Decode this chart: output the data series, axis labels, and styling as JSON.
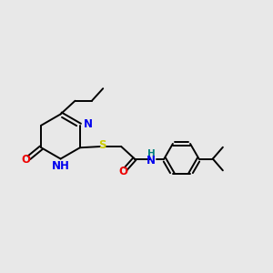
{
  "bg_color": "#e8e8e8",
  "bond_color": "#000000",
  "atom_colors": {
    "N": "#0000ee",
    "O": "#ee0000",
    "S": "#cccc00",
    "NH_label": "#008080",
    "C": "#000000"
  },
  "lw": 1.4,
  "fs": 8.5,
  "xlim": [
    0,
    12
  ],
  "ylim": [
    0,
    10
  ]
}
